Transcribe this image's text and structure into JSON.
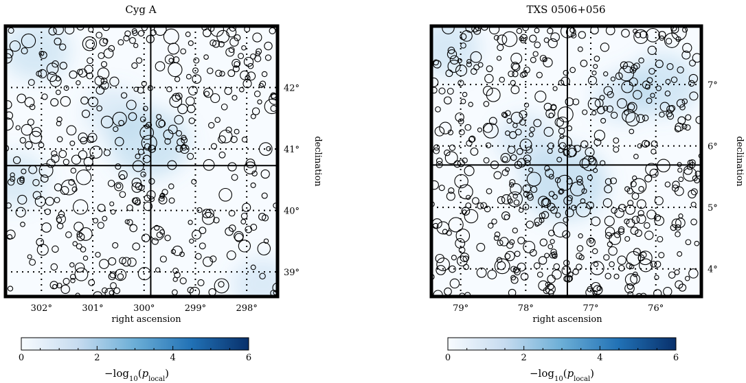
{
  "colors": {
    "cmap_low": "#f7fbff",
    "cmap_mid": "#6baed6",
    "cmap_high": "#08306b",
    "frame": "#000000"
  },
  "chart_data": [
    {
      "type": "heatmap",
      "title": "Cyg A",
      "xlabel": "right ascension",
      "ylabel": "declination",
      "x_axis_reversed": true,
      "xlim": [
        302.7,
        297.4
      ],
      "ylim": [
        38.6,
        43.0
      ],
      "xticks": [
        302,
        301,
        300,
        299,
        298
      ],
      "xtick_labels": [
        "302°",
        "301°",
        "300°",
        "299°",
        "298°"
      ],
      "yticks": [
        39,
        40,
        41,
        42
      ],
      "ytick_labels": [
        "39°",
        "40°",
        "41°",
        "42°"
      ],
      "grid": "dotted",
      "source_crosshair": {
        "ra": 299.87,
        "dec": 40.73
      },
      "hotspots": [
        {
          "ra": 299.9,
          "dec": 41.1,
          "value": 2.0
        },
        {
          "ra": 302.1,
          "dec": 42.6,
          "value": 1.4
        },
        {
          "ra": 302.5,
          "dec": 40.5,
          "value": 1.1
        },
        {
          "ra": 297.7,
          "dec": 38.8,
          "value": 1.0
        },
        {
          "ra": 300.6,
          "dec": 41.6,
          "value": 0.9
        }
      ],
      "colorbar": {
        "min": 0,
        "max": 6,
        "ticks": [
          0,
          2,
          4,
          6
        ],
        "tick_labels": [
          "0",
          "2",
          "4",
          "6"
        ],
        "label": "−log₁₀(p_local)"
      }
    },
    {
      "type": "heatmap",
      "title": "TXS 0506+056",
      "xlabel": "right ascension",
      "ylabel": "declination",
      "x_axis_reversed": true,
      "xlim": [
        79.45,
        75.3
      ],
      "ylim": [
        3.55,
        7.95
      ],
      "xticks": [
        79,
        78,
        77,
        76
      ],
      "xtick_labels": [
        "79°",
        "78°",
        "77°",
        "76°"
      ],
      "yticks": [
        4,
        5,
        6,
        7
      ],
      "ytick_labels": [
        "4°",
        "5°",
        "6°",
        "7°"
      ],
      "grid": "dotted",
      "source_crosshair": {
        "ra": 77.36,
        "dec": 5.69
      },
      "hotspots": [
        {
          "ra": 77.4,
          "dec": 5.4,
          "value": 2.3
        },
        {
          "ra": 75.9,
          "dec": 7.0,
          "value": 1.6
        },
        {
          "ra": 79.2,
          "dec": 7.6,
          "value": 1.3
        },
        {
          "ra": 78.0,
          "dec": 6.1,
          "value": 1.0
        },
        {
          "ra": 76.5,
          "dec": 6.8,
          "value": 1.0
        }
      ],
      "colorbar": {
        "min": 0,
        "max": 6,
        "ticks": [
          0,
          2,
          4,
          6
        ],
        "tick_labels": [
          "0",
          "2",
          "4",
          "6"
        ],
        "label": "−log₁₀(p_local)"
      }
    }
  ]
}
